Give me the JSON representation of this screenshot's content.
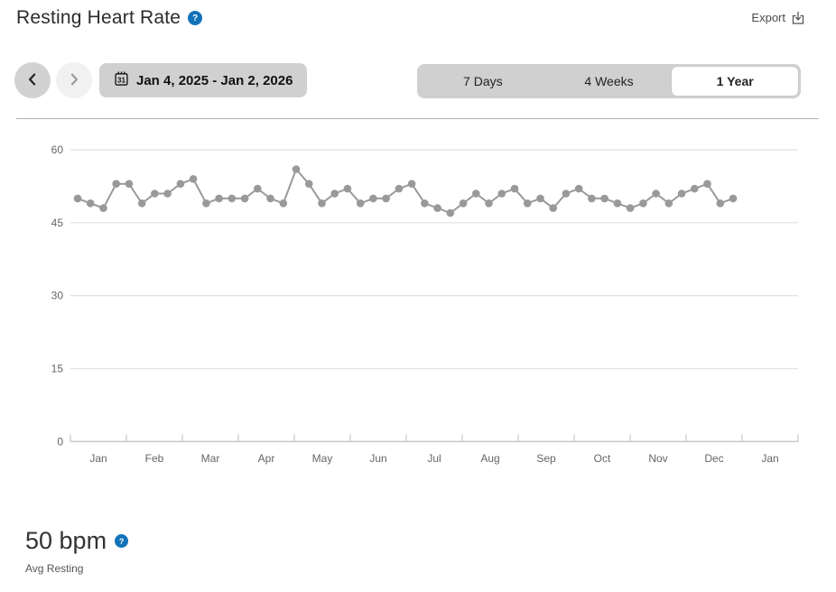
{
  "header": {
    "title": "Resting Heart Rate",
    "export_label": "Export"
  },
  "icons": {
    "title_help": "question-circle",
    "export": "export-tray-arrow",
    "prev": "chevron-left",
    "next": "chevron-right",
    "calendar": "calendar-day-31",
    "summary_help": "question-circle"
  },
  "toolbar": {
    "date_range": "Jan 4, 2025 - Jan 2, 2026",
    "calendar_day": "31",
    "tabs": [
      {
        "label": "7 Days",
        "selected": false
      },
      {
        "label": "4 Weeks",
        "selected": false
      },
      {
        "label": "1 Year",
        "selected": true
      }
    ]
  },
  "chart_data": {
    "type": "line",
    "title": "Resting Heart Rate",
    "unit": "bpm",
    "x_interval": "weekly averages, Jan 4 2025 - Jan 2 2026",
    "x_axis_months": [
      "Jan",
      "Feb",
      "Mar",
      "Apr",
      "May",
      "Jun",
      "Jul",
      "Aug",
      "Sep",
      "Oct",
      "Nov",
      "Dec",
      "Jan"
    ],
    "y_ticks": [
      0,
      15,
      30,
      45,
      60
    ],
    "ylim": [
      0,
      60
    ],
    "grid": true,
    "legend": "none",
    "line_color": "#999999",
    "grid_color": "#e0e0e0",
    "axis_color": "#c4c4c4",
    "tick_label_color": "#666666",
    "values": [
      50,
      49,
      48,
      53,
      53,
      49,
      51,
      51,
      53,
      54,
      49,
      50,
      50,
      50,
      52,
      50,
      49,
      56,
      53,
      49,
      51,
      52,
      49,
      50,
      50,
      52,
      53,
      49,
      48,
      47,
      49,
      51,
      49,
      51,
      52,
      49,
      50,
      48,
      51,
      52,
      50,
      50,
      49,
      48,
      49,
      51,
      49,
      51,
      52,
      53,
      49,
      50
    ]
  },
  "summary": {
    "value": "50 bpm",
    "label": "Avg Resting"
  },
  "colors": {
    "accent_blue": "#1373b9",
    "control_gray": "#d0d0d0",
    "selected_tab": "#ffffff",
    "line_gray": "#999999"
  }
}
